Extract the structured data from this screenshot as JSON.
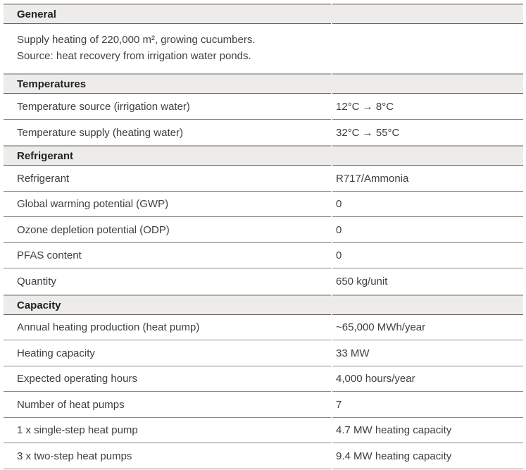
{
  "colors": {
    "band_bg": "#edecea",
    "band_top_border": "#b0aea8",
    "band_bottom_border": "#636260",
    "row_border": "#8b8a85",
    "text": "#3e3e3e",
    "heading_text": "#232323"
  },
  "sections": [
    {
      "title": "General",
      "type": "paragraph",
      "lines": [
        "Supply heating of 220,000 m², growing cucumbers.",
        "Source: heat recovery from irrigation water ponds."
      ]
    },
    {
      "title": "Temperatures",
      "type": "rows",
      "rows": [
        {
          "label": "Temperature source (irrigation water)",
          "value": "12°C → 8°C"
        },
        {
          "label": "Temperature supply (heating water)",
          "value": "32°C → 55°C"
        }
      ]
    },
    {
      "title": "Refrigerant",
      "type": "rows",
      "rows": [
        {
          "label": "Refrigerant",
          "value": "R717/Ammonia"
        },
        {
          "label": "Global warming potential (GWP)",
          "value": "0"
        },
        {
          "label": "Ozone depletion potential (ODP)",
          "value": "0"
        },
        {
          "label": "PFAS content",
          "value": "0"
        },
        {
          "label": "Quantity",
          "value": "650 kg/unit"
        }
      ]
    },
    {
      "title": "Capacity",
      "type": "rows",
      "rows": [
        {
          "label": "Annual heating production (heat pump)",
          "value": "~65,000 MWh/year"
        },
        {
          "label": "Heating capacity",
          "value": "33 MW"
        },
        {
          "label": "Expected operating hours",
          "value": "4,000 hours/year"
        },
        {
          "label": "Number of heat pumps",
          "value": "7"
        },
        {
          "label": "1 x single-step heat pump",
          "value": "4.7 MW heating capacity"
        },
        {
          "label": "3 x two-step heat pumps",
          "value": "9.4 MW heating capacity"
        }
      ]
    }
  ]
}
